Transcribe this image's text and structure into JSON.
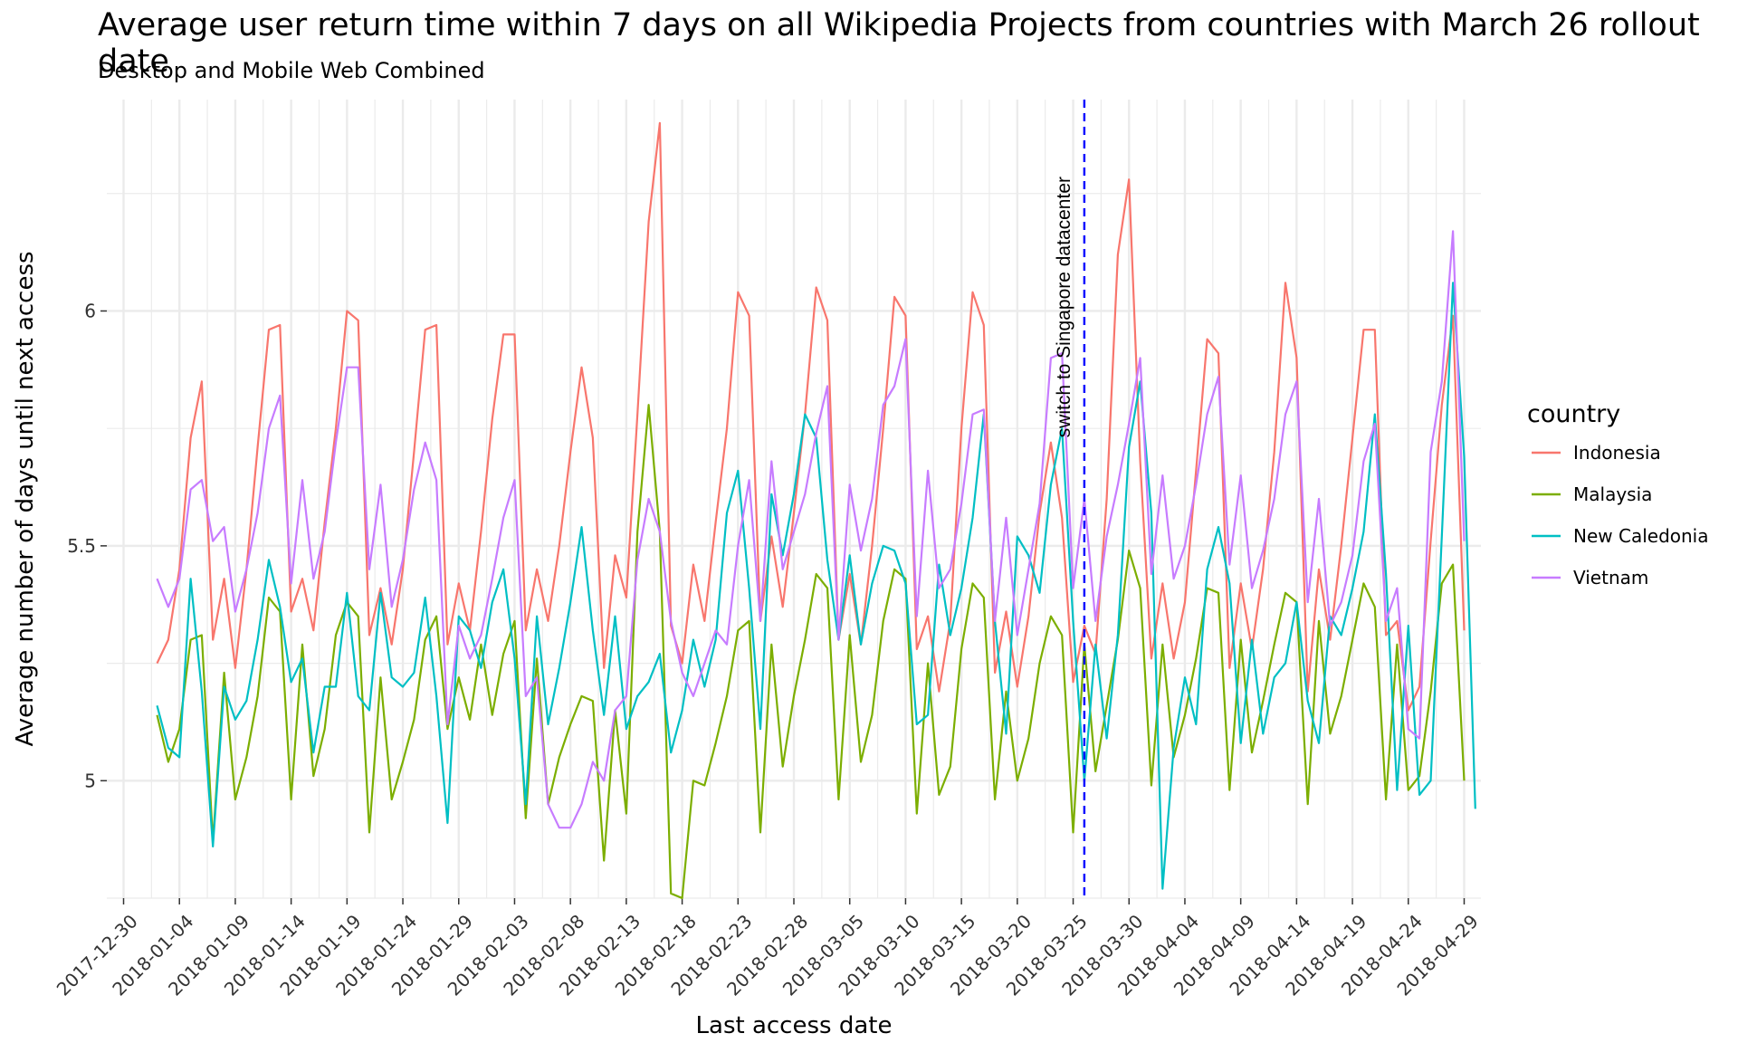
{
  "chart_data": {
    "type": "line",
    "title": "Average user return time within 7 days on all Wikipedia Projects from countries with March 26 rollout date",
    "subtitle": "Desktop and Mobile Web Combined",
    "xlabel": "Last access date",
    "ylabel": "Average number of days until next access",
    "x_start": "2018-01-02",
    "x_ticks": [
      "2017-12-30",
      "2018-01-04",
      "2018-01-09",
      "2018-01-14",
      "2018-01-19",
      "2018-01-24",
      "2018-01-29",
      "2018-02-03",
      "2018-02-08",
      "2018-02-13",
      "2018-02-18",
      "2018-02-23",
      "2018-02-28",
      "2018-03-05",
      "2018-03-10",
      "2018-03-15",
      "2018-03-20",
      "2018-03-25",
      "2018-03-30",
      "2018-04-04",
      "2018-04-09",
      "2018-04-14",
      "2018-04-19",
      "2018-04-24",
      "2018-04-29"
    ],
    "y_ticks": [
      5,
      5.5,
      6
    ],
    "ylim": [
      4.75,
      6.45
    ],
    "grid": true,
    "legend": {
      "title": "country",
      "position": "right"
    },
    "annotation": {
      "label": "switch to Singapore datacenter",
      "x": "2018-03-26",
      "color": "#0000ff",
      "style": "dashed"
    },
    "series": [
      {
        "name": "Indonesia",
        "color": "#F8766D",
        "values": [
          5.25,
          5.3,
          5.45,
          5.73,
          5.85,
          5.3,
          5.43,
          5.24,
          5.45,
          5.71,
          5.96,
          5.97,
          5.36,
          5.43,
          5.32,
          5.55,
          5.75,
          6.0,
          5.98,
          5.31,
          5.41,
          5.29,
          5.45,
          5.7,
          5.96,
          5.97,
          5.29,
          5.42,
          5.32,
          5.53,
          5.77,
          5.95,
          5.95,
          5.32,
          5.45,
          5.34,
          5.5,
          5.7,
          5.88,
          5.73,
          5.24,
          5.48,
          5.39,
          5.78,
          6.19,
          6.4,
          5.33,
          5.25,
          5.46,
          5.34,
          5.55,
          5.75,
          6.04,
          5.99,
          5.34,
          5.52,
          5.37,
          5.57,
          5.78,
          6.05,
          5.98,
          5.3,
          5.44,
          5.29,
          5.5,
          5.75,
          6.03,
          5.99,
          5.28,
          5.35,
          5.19,
          5.34,
          5.75,
          6.04,
          5.97,
          5.23,
          5.36,
          5.2,
          5.35,
          5.57,
          5.72,
          5.56,
          5.21,
          5.33,
          5.27,
          5.6,
          6.12,
          6.28,
          5.68,
          5.26,
          5.42,
          5.26,
          5.38,
          5.66,
          5.94,
          5.91,
          5.24,
          5.42,
          5.28,
          5.45,
          5.7,
          6.06,
          5.9,
          5.19,
          5.45,
          5.3,
          5.5,
          5.73,
          5.96,
          5.96,
          5.31,
          5.34,
          5.15,
          5.2,
          5.51,
          5.8,
          5.99,
          5.32
        ]
      },
      {
        "name": "Malaysia",
        "color": "#7CAE00",
        "values": [
          5.14,
          5.04,
          5.11,
          5.3,
          5.31,
          4.87,
          5.23,
          4.96,
          5.05,
          5.18,
          5.39,
          5.36,
          4.96,
          5.29,
          5.01,
          5.11,
          5.31,
          5.38,
          5.35,
          4.89,
          5.22,
          4.96,
          5.04,
          5.13,
          5.3,
          5.35,
          5.11,
          5.22,
          5.13,
          5.29,
          5.14,
          5.27,
          5.34,
          4.92,
          5.26,
          4.95,
          5.05,
          5.12,
          5.18,
          5.17,
          4.83,
          5.15,
          4.93,
          5.53,
          5.8,
          5.53,
          4.76,
          4.75,
          5.0,
          4.99,
          5.08,
          5.18,
          5.32,
          5.34,
          4.89,
          5.29,
          5.03,
          5.18,
          5.3,
          5.44,
          5.41,
          4.96,
          5.31,
          5.04,
          5.14,
          5.34,
          5.45,
          5.43,
          4.93,
          5.25,
          4.97,
          5.03,
          5.28,
          5.42,
          5.39,
          4.96,
          5.19,
          5.0,
          5.09,
          5.25,
          5.35,
          5.31,
          4.89,
          5.29,
          5.02,
          5.16,
          5.3,
          5.49,
          5.41,
          4.99,
          5.29,
          5.05,
          5.14,
          5.26,
          5.41,
          5.4,
          4.98,
          5.3,
          5.06,
          5.17,
          5.29,
          5.4,
          5.38,
          4.95,
          5.34,
          5.1,
          5.18,
          5.3,
          5.42,
          5.37,
          4.96,
          5.29,
          4.98,
          5.01,
          5.19,
          5.42,
          5.46,
          5.0
        ]
      },
      {
        "name": "New Caledonia",
        "color": "#00BFC4",
        "values": [
          5.16,
          5.07,
          5.05,
          5.43,
          5.19,
          4.86,
          5.2,
          5.13,
          5.17,
          5.3,
          5.47,
          5.37,
          5.21,
          5.26,
          5.06,
          5.2,
          5.2,
          5.4,
          5.18,
          5.15,
          5.4,
          5.22,
          5.2,
          5.23,
          5.39,
          5.18,
          4.91,
          5.35,
          5.32,
          5.24,
          5.38,
          5.45,
          5.26,
          4.95,
          5.35,
          5.12,
          5.24,
          5.38,
          5.54,
          5.32,
          5.14,
          5.35,
          5.11,
          5.18,
          5.21,
          5.27,
          5.06,
          5.15,
          5.3,
          5.2,
          5.3,
          5.57,
          5.66,
          5.41,
          5.11,
          5.61,
          5.48,
          5.61,
          5.78,
          5.73,
          5.47,
          5.3,
          5.48,
          5.29,
          5.42,
          5.5,
          5.49,
          5.42,
          5.12,
          5.14,
          5.46,
          5.31,
          5.41,
          5.56,
          5.78,
          5.34,
          5.1,
          5.52,
          5.48,
          5.4,
          5.63,
          5.75,
          5.34,
          5.0,
          5.29,
          5.09,
          5.31,
          5.71,
          5.85,
          5.57,
          4.77,
          5.07,
          5.22,
          5.12,
          5.45,
          5.54,
          5.42,
          5.08,
          5.3,
          5.1,
          5.22,
          5.25,
          5.38,
          5.17,
          5.08,
          5.35,
          5.31,
          5.41,
          5.53,
          5.78,
          5.44,
          4.98,
          5.33,
          4.97,
          5.0,
          5.52,
          6.06,
          5.69,
          4.94
        ]
      },
      {
        "name": "Vietnam",
        "color": "#C77CFF",
        "values": [
          5.43,
          5.37,
          5.43,
          5.62,
          5.64,
          5.51,
          5.54,
          5.36,
          5.45,
          5.57,
          5.75,
          5.82,
          5.42,
          5.64,
          5.43,
          5.53,
          5.72,
          5.88,
          5.88,
          5.45,
          5.63,
          5.37,
          5.47,
          5.62,
          5.72,
          5.64,
          5.12,
          5.33,
          5.26,
          5.31,
          5.43,
          5.56,
          5.64,
          5.18,
          5.22,
          4.95,
          4.9,
          4.9,
          4.95,
          5.04,
          5.0,
          5.15,
          5.18,
          5.47,
          5.6,
          5.53,
          5.34,
          5.23,
          5.18,
          5.25,
          5.32,
          5.29,
          5.5,
          5.64,
          5.34,
          5.68,
          5.45,
          5.53,
          5.61,
          5.74,
          5.84,
          5.3,
          5.63,
          5.49,
          5.6,
          5.8,
          5.84,
          5.94,
          5.35,
          5.66,
          5.41,
          5.45,
          5.59,
          5.78,
          5.79,
          5.34,
          5.56,
          5.31,
          5.45,
          5.59,
          5.9,
          5.91,
          5.41,
          5.6,
          5.34,
          5.52,
          5.63,
          5.76,
          5.9,
          5.44,
          5.65,
          5.43,
          5.5,
          5.63,
          5.78,
          5.86,
          5.46,
          5.65,
          5.41,
          5.49,
          5.6,
          5.78,
          5.85,
          5.38,
          5.6,
          5.33,
          5.38,
          5.48,
          5.68,
          5.76,
          5.34,
          5.41,
          5.11,
          5.09,
          5.7,
          5.85,
          6.17,
          5.51
        ]
      }
    ]
  }
}
